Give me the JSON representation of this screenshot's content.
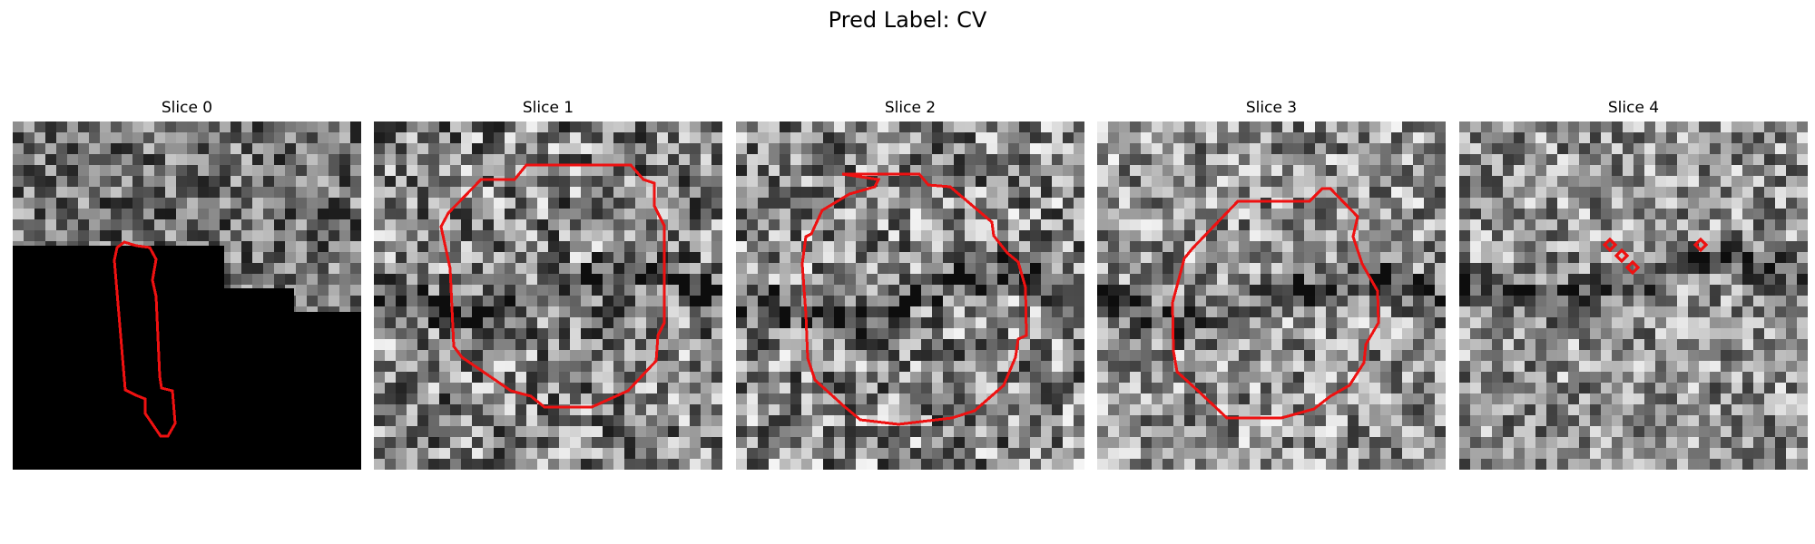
{
  "figure": {
    "title": "Pred Label: CV"
  },
  "panels": [
    {
      "title": "Slice 0"
    },
    {
      "title": "Slice 1"
    },
    {
      "title": "Slice 2"
    },
    {
      "title": "Slice 3"
    },
    {
      "title": "Slice 4"
    }
  ],
  "colors": {
    "contour": "#ee1111",
    "mask": "#000000",
    "background": "#ffffff"
  }
}
